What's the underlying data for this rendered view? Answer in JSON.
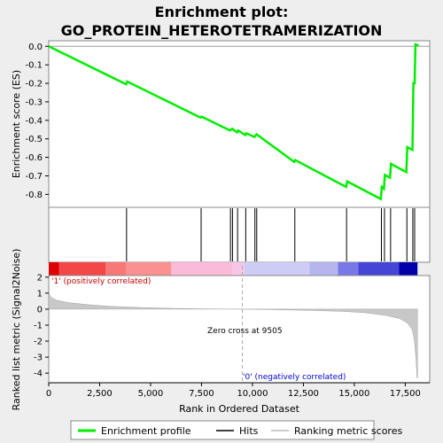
{
  "chart_data": {
    "type": "line",
    "title_line1": "Enrichment plot:",
    "title_line2": "GO_PROTEIN_HETEROTETRAMERIZATION",
    "top_panel": {
      "ylabel": "Enrichment score (ES)",
      "ylim": [
        -0.87,
        0.03
      ],
      "yticks": [
        0.0,
        -0.1,
        -0.2,
        -0.3,
        -0.4,
        -0.5,
        -0.6,
        -0.7,
        -0.8
      ],
      "ytick_labels": [
        "0.0",
        "-0.1",
        "-0.2",
        "-0.3",
        "-0.4",
        "-0.5",
        "-0.6",
        "-0.7",
        "-0.8"
      ],
      "series": [
        {
          "name": "Enrichment profile",
          "color": "#00ee00",
          "points": [
            [
              0,
              0.0
            ],
            [
              3800,
              -0.205
            ],
            [
              3850,
              -0.19
            ],
            [
              7450,
              -0.385
            ],
            [
              7500,
              -0.38
            ],
            [
              8900,
              -0.455
            ],
            [
              9000,
              -0.445
            ],
            [
              9250,
              -0.465
            ],
            [
              9300,
              -0.455
            ],
            [
              9650,
              -0.48
            ],
            [
              9700,
              -0.47
            ],
            [
              10100,
              -0.49
            ],
            [
              10200,
              -0.475
            ],
            [
              12050,
              -0.625
            ],
            [
              12100,
              -0.615
            ],
            [
              14600,
              -0.76
            ],
            [
              14650,
              -0.73
            ],
            [
              16300,
              -0.825
            ],
            [
              16350,
              -0.76
            ],
            [
              16450,
              -0.77
            ],
            [
              16500,
              -0.695
            ],
            [
              16750,
              -0.71
            ],
            [
              16800,
              -0.635
            ],
            [
              17550,
              -0.68
            ],
            [
              17600,
              -0.545
            ],
            [
              17850,
              -0.56
            ],
            [
              17880,
              -0.38
            ],
            [
              17900,
              -0.2
            ],
            [
              17960,
              -0.2
            ],
            [
              18000,
              0.01
            ],
            [
              18150,
              0.005
            ]
          ]
        }
      ]
    },
    "hits": [
      3820,
      7480,
      8920,
      9020,
      9270,
      9670,
      10120,
      10210,
      12080,
      14620,
      16330,
      16480,
      16780,
      17580,
      17870,
      17960
    ],
    "bottom_panel": {
      "ylabel": "Ranked list metric (Signal2Noise)",
      "ylim": [
        -4.6,
        2.1
      ],
      "yticks": [
        2,
        1,
        0,
        -1,
        -2,
        -3,
        -4
      ],
      "ytick_labels": [
        "2",
        "1",
        "0",
        "-1",
        "-2",
        "-3",
        "-4"
      ],
      "metric_curve": [
        [
          0,
          1.05
        ],
        [
          100,
          0.75
        ],
        [
          400,
          0.55
        ],
        [
          1000,
          0.4
        ],
        [
          2000,
          0.27
        ],
        [
          3000,
          0.18
        ],
        [
          4500,
          0.1
        ],
        [
          6000,
          0.05
        ],
        [
          8000,
          0.015
        ],
        [
          9505,
          0.0
        ],
        [
          11000,
          -0.03
        ],
        [
          13000,
          -0.08
        ],
        [
          14500,
          -0.14
        ],
        [
          15500,
          -0.22
        ],
        [
          16500,
          -0.38
        ],
        [
          17200,
          -0.58
        ],
        [
          17600,
          -0.85
        ],
        [
          17850,
          -1.3
        ],
        [
          17950,
          -2.0
        ],
        [
          18030,
          -3.2
        ],
        [
          18080,
          -4.3
        ],
        [
          18100,
          -4.3
        ]
      ],
      "positive_label": "'1' (positively correlated)",
      "negative_label": "'0' (negatively correlated)",
      "zero_cross_label": "Zero cross at 9505",
      "zero_cross_rank": 9505
    },
    "xaxis": {
      "xlabel": "Rank in Ordered Dataset",
      "xlim": [
        0,
        18700
      ],
      "xticks": [
        0,
        2500,
        5000,
        7500,
        10000,
        12500,
        15000,
        17500
      ],
      "xtick_labels": [
        "0",
        "2,500",
        "5,000",
        "7,500",
        "10,000",
        "12,500",
        "15,000",
        "17,500"
      ],
      "max_rank": 18100
    },
    "heat_bar": {
      "segments": [
        {
          "end": 500,
          "color": "#dd0000"
        },
        {
          "end": 2800,
          "color": "#f44848"
        },
        {
          "end": 3800,
          "color": "#f87878"
        },
        {
          "end": 6000,
          "color": "#fb9090"
        },
        {
          "end": 9000,
          "color": "#fbbad8"
        },
        {
          "end": 9600,
          "color": "#f6c6e6"
        },
        {
          "end": 12800,
          "color": "#ccccf4"
        },
        {
          "end": 14200,
          "color": "#b6b6ee"
        },
        {
          "end": 15200,
          "color": "#7878e6"
        },
        {
          "end": 17200,
          "color": "#4646d6"
        },
        {
          "end": 18100,
          "color": "#0000aa"
        }
      ]
    },
    "legend": [
      {
        "label": "Enrichment profile",
        "color": "#00ee00",
        "kind": "thick-line"
      },
      {
        "label": "Hits",
        "color": "#000000",
        "kind": "line"
      },
      {
        "label": "Ranking metric scores",
        "color": "#bbbbbb",
        "kind": "line"
      }
    ]
  }
}
